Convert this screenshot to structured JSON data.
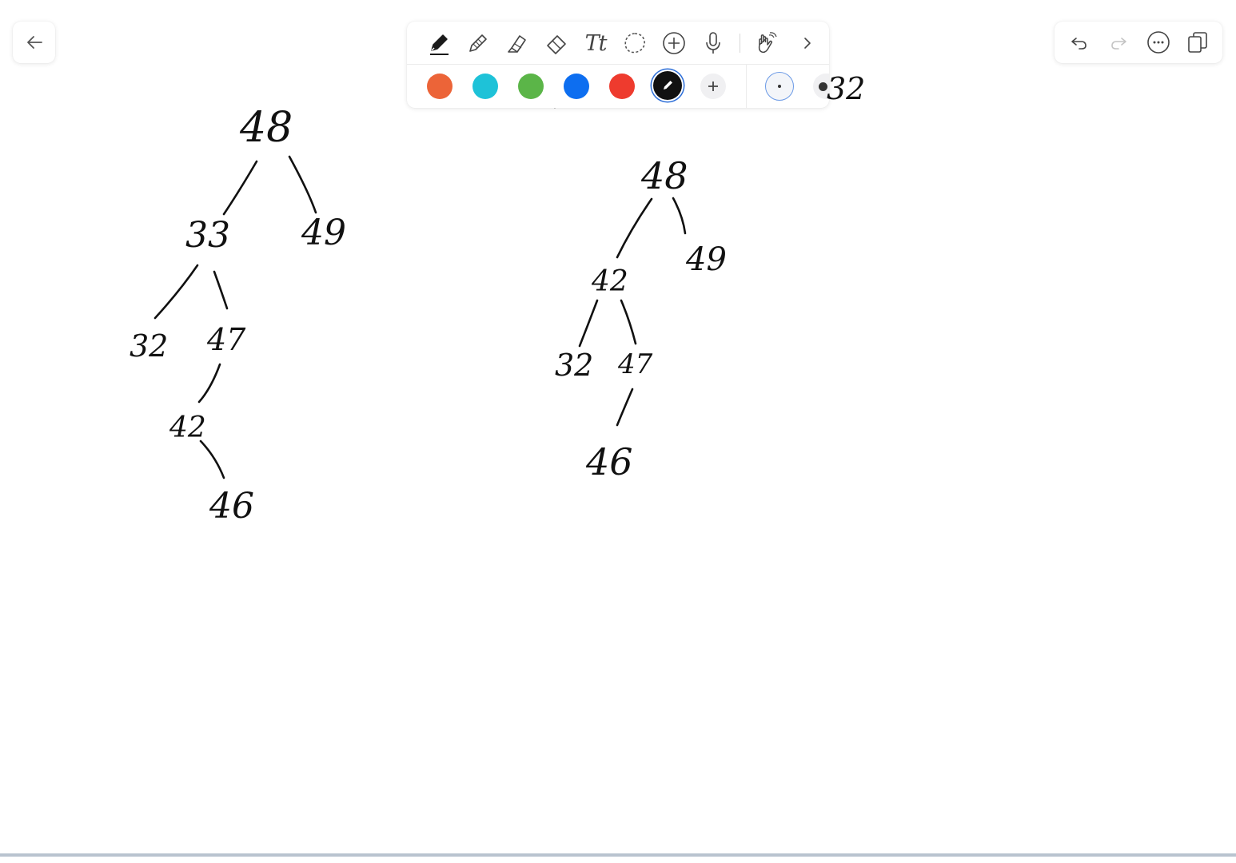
{
  "toolbar": {
    "tools": [
      {
        "name": "pen-tool",
        "icon": "pen-icon",
        "selected": true
      },
      {
        "name": "pencil-tool",
        "icon": "pencil-icon"
      },
      {
        "name": "highlighter-tool",
        "icon": "highlighter-icon"
      },
      {
        "name": "eraser-tool",
        "icon": "eraser-icon"
      },
      {
        "name": "text-tool",
        "icon": "text-icon",
        "label": "Tt"
      },
      {
        "name": "lasso-tool",
        "icon": "lasso-icon"
      },
      {
        "name": "insert-tool",
        "icon": "plus-circle-icon"
      },
      {
        "name": "voice-tool",
        "icon": "microphone-icon"
      },
      {
        "name": "hand-tool",
        "icon": "hand-icon"
      },
      {
        "name": "more-tools",
        "icon": "chevron-right-icon"
      }
    ],
    "colors": [
      "#EC6438",
      "#1EC2D8",
      "#5BB548",
      "#0D6EF0",
      "#EE3B2E",
      "#111111"
    ],
    "selected_color": "#111111",
    "add_color_icon": "plus-icon",
    "stroke_sizes": [
      "small",
      "medium"
    ],
    "selected_stroke_size": "small"
  },
  "header": {
    "back_icon": "arrow-left-icon",
    "actions": [
      {
        "name": "undo-button",
        "icon": "undo-icon",
        "enabled": true
      },
      {
        "name": "redo-button",
        "icon": "redo-icon",
        "enabled": false
      },
      {
        "name": "more-button",
        "icon": "ellipsis-circle-icon",
        "enabled": true
      },
      {
        "name": "pages-button",
        "icon": "copy-pages-icon",
        "enabled": true
      }
    ]
  },
  "drawing": {
    "stray_note": "32",
    "tree_left": {
      "root": "48",
      "left_child": "33",
      "right_child": "49",
      "node_32": "32",
      "node_47": "47",
      "node_42": "42",
      "node_46": "46"
    },
    "tree_right": {
      "root": "48",
      "left_child": "42",
      "right_child": "49",
      "node_32": "32",
      "node_47": "47",
      "node_46": "46"
    }
  }
}
